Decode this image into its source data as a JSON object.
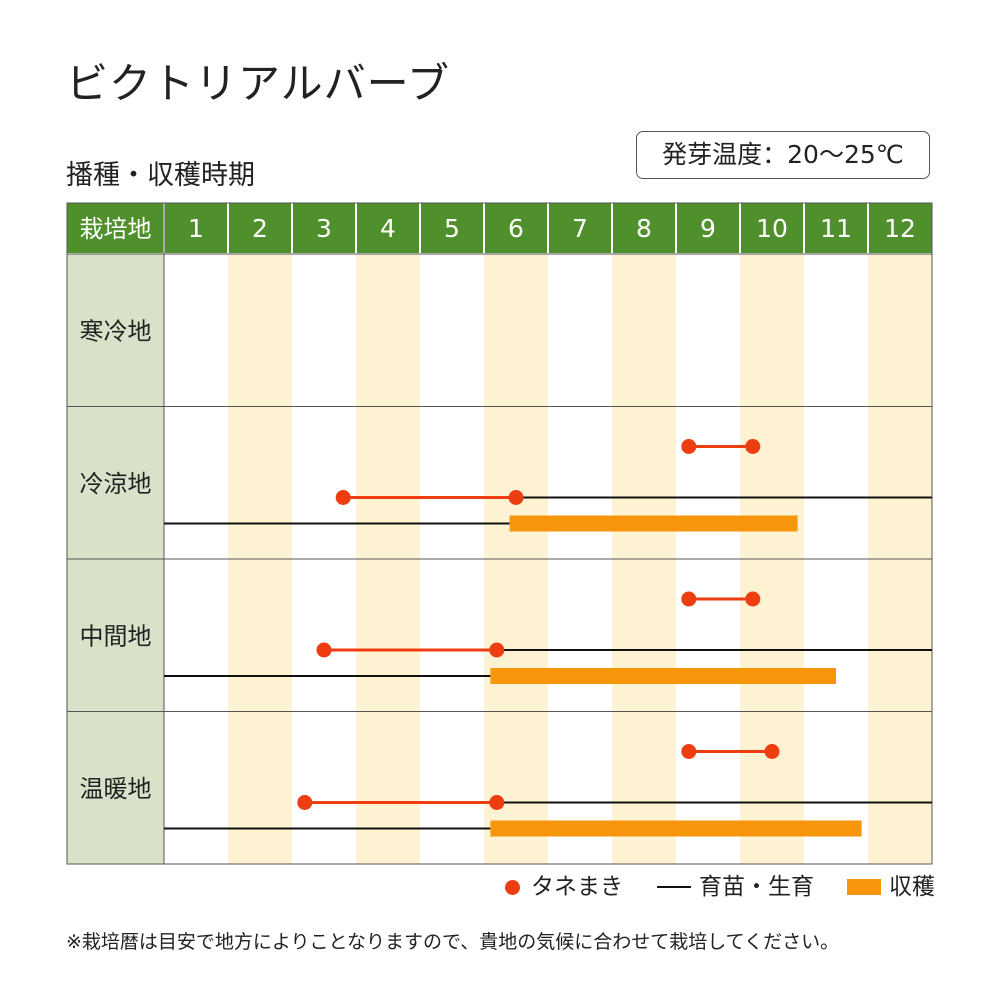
{
  "header": {
    "title": "ビクトリアルバーブ",
    "subtitle": "播種・収穫時期",
    "temperature": "発芽温度：20〜25℃"
  },
  "colors": {
    "header_bg": "#4f8f2c",
    "region_bg": "#d7e2c8",
    "stripe_bg": "#fdf3d3",
    "sowing": "#ee3d10",
    "harvest": "#f7960b",
    "growth": "#111111",
    "grid": "#555555"
  },
  "chart_data": {
    "type": "table",
    "corner_label": "栽培地",
    "months": [
      "1",
      "2",
      "3",
      "4",
      "5",
      "6",
      "7",
      "8",
      "9",
      "10",
      "11",
      "12"
    ],
    "rows": [
      {
        "region": "寒冷地",
        "lines": []
      },
      {
        "region": "冷涼地",
        "lines": [
          {
            "sowing": [
              9.2,
              10.2
            ]
          },
          {
            "sowing": [
              3.8,
              6.5
            ],
            "growth": [
              6.5,
              13.0
            ]
          },
          {
            "growth": [
              1.0,
              6.4
            ],
            "harvest": [
              6.4,
              10.9
            ]
          }
        ]
      },
      {
        "region": "中間地",
        "lines": [
          {
            "sowing": [
              9.2,
              10.2
            ]
          },
          {
            "sowing": [
              3.5,
              6.2
            ],
            "growth": [
              6.2,
              13.0
            ]
          },
          {
            "growth": [
              1.0,
              6.1
            ],
            "harvest": [
              6.1,
              11.5
            ]
          }
        ]
      },
      {
        "region": "温暖地",
        "lines": [
          {
            "sowing": [
              9.2,
              10.5
            ]
          },
          {
            "sowing": [
              3.2,
              6.2
            ],
            "growth": [
              6.2,
              13.0
            ]
          },
          {
            "growth": [
              1.0,
              6.1
            ],
            "harvest": [
              6.1,
              11.9
            ]
          }
        ]
      }
    ],
    "legend": [
      {
        "key": "sowing",
        "label": "タネまき"
      },
      {
        "key": "growth",
        "label": "育苗・生育"
      },
      {
        "key": "harvest",
        "label": "収穫"
      }
    ]
  },
  "footnote": "※栽培暦は目安で地方によりことなりますので、貴地の気候に合わせて栽培してください。"
}
